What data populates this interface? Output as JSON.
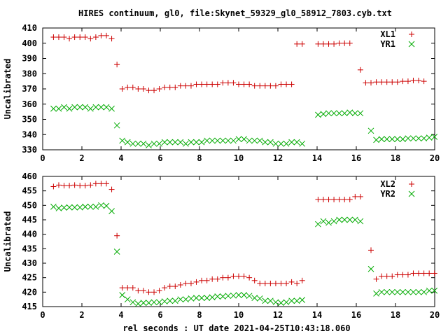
{
  "title": "HIRES continuum, gl0, file:Skynet_59329_gl0_58912_7803.cyb.txt",
  "xlabel": "rel seconds : UT date 2021-04-25T10:43:18.060",
  "colors": {
    "red": "#cc0000",
    "green": "#00aa00"
  },
  "chart_data": [
    {
      "type": "scatter",
      "ylabel": "Uncalibrated",
      "xlim": [
        0,
        20
      ],
      "ylim": [
        330,
        410
      ],
      "xticks": [
        0,
        2,
        4,
        6,
        8,
        10,
        12,
        14,
        16,
        18,
        20
      ],
      "yticks": [
        330,
        340,
        350,
        360,
        370,
        380,
        390,
        400,
        410
      ],
      "series": [
        {
          "name": "XL1",
          "marker": "plus",
          "color": "#cc0000",
          "x": [
            0.55,
            0.82,
            1.09,
            1.36,
            1.63,
            1.9,
            2.17,
            2.44,
            2.71,
            2.98,
            3.25,
            3.52,
            3.79,
            4.06,
            4.33,
            4.6,
            4.87,
            5.14,
            5.41,
            5.68,
            5.95,
            6.22,
            6.49,
            6.76,
            7.03,
            7.3,
            7.57,
            7.84,
            8.11,
            8.38,
            8.65,
            8.92,
            9.19,
            9.46,
            9.73,
            10.0,
            10.27,
            10.54,
            10.81,
            11.08,
            11.35,
            11.62,
            11.89,
            12.16,
            12.43,
            12.7,
            12.97,
            13.24,
            13.51,
            13.78,
            14.05,
            14.32,
            14.59,
            14.86,
            15.13,
            15.4,
            15.67,
            15.94,
            16.21,
            16.48,
            16.75,
            17.02,
            17.29,
            17.56,
            17.83,
            18.1,
            18.37,
            18.64,
            18.91,
            19.18,
            19.45,
            19.72,
            19.99
          ],
          "y": [
            404,
            404,
            404,
            403,
            404,
            404,
            404,
            403,
            404,
            405,
            405,
            403,
            386,
            370,
            371,
            371,
            370,
            370,
            369,
            369,
            370,
            371,
            371,
            371,
            372,
            372,
            372,
            373,
            373,
            373,
            373,
            373,
            374,
            374,
            374,
            373,
            373,
            373,
            372,
            372,
            372,
            372,
            372,
            373,
            373,
            373,
            null,
            null,
            null,
            null,
            null,
            null,
            null,
            null,
            null,
            null,
            null,
            null,
            null,
            null,
            null,
            null,
            null,
            null,
            null,
            null,
            null,
            null,
            null,
            null,
            null,
            null,
            null
          ]
        },
        {
          "name": "YR1",
          "marker": "cross",
          "color": "#00aa00",
          "x": [
            0.55,
            0.82,
            1.09,
            1.36,
            1.63,
            1.9,
            2.17,
            2.44,
            2.71,
            2.98,
            3.25,
            3.52,
            3.79,
            4.06,
            4.33,
            4.6,
            4.87,
            5.14,
            5.41,
            5.68,
            5.95,
            6.22,
            6.49,
            6.76,
            7.03,
            7.3,
            7.57,
            7.84,
            8.11,
            8.38,
            8.65,
            8.92,
            9.19,
            9.46,
            9.73,
            10.0,
            10.27,
            10.54,
            10.81,
            11.08,
            11.35,
            11.62,
            11.89,
            12.16,
            12.43,
            12.7,
            12.97,
            13.24
          ],
          "y": [
            357,
            357,
            358,
            357,
            358,
            358,
            358,
            357,
            358,
            358,
            358,
            357,
            346,
            336,
            335,
            334,
            334,
            334,
            333,
            334,
            334,
            335,
            335,
            335,
            335,
            334,
            335,
            335,
            335,
            336,
            336,
            336,
            336,
            336,
            336,
            337,
            337,
            336,
            336,
            336,
            335,
            335,
            334,
            334,
            334,
            335,
            335,
            334
          ]
        }
      ]
    },
    {
      "type": "scatter",
      "ylabel": "Uncalibrated",
      "xlim": [
        0,
        20
      ],
      "ylim": [
        415,
        460
      ],
      "xticks": [
        0,
        2,
        4,
        6,
        8,
        10,
        12,
        14,
        16,
        18,
        20
      ],
      "yticks": [
        415,
        420,
        425,
        430,
        435,
        440,
        445,
        450,
        455,
        460
      ],
      "series": [
        {
          "name": "XL2",
          "marker": "plus",
          "color": "#cc0000",
          "x": [],
          "y": []
        },
        {
          "name": "YR2",
          "marker": "cross",
          "color": "#00aa00",
          "x": [],
          "y": []
        }
      ]
    }
  ]
}
